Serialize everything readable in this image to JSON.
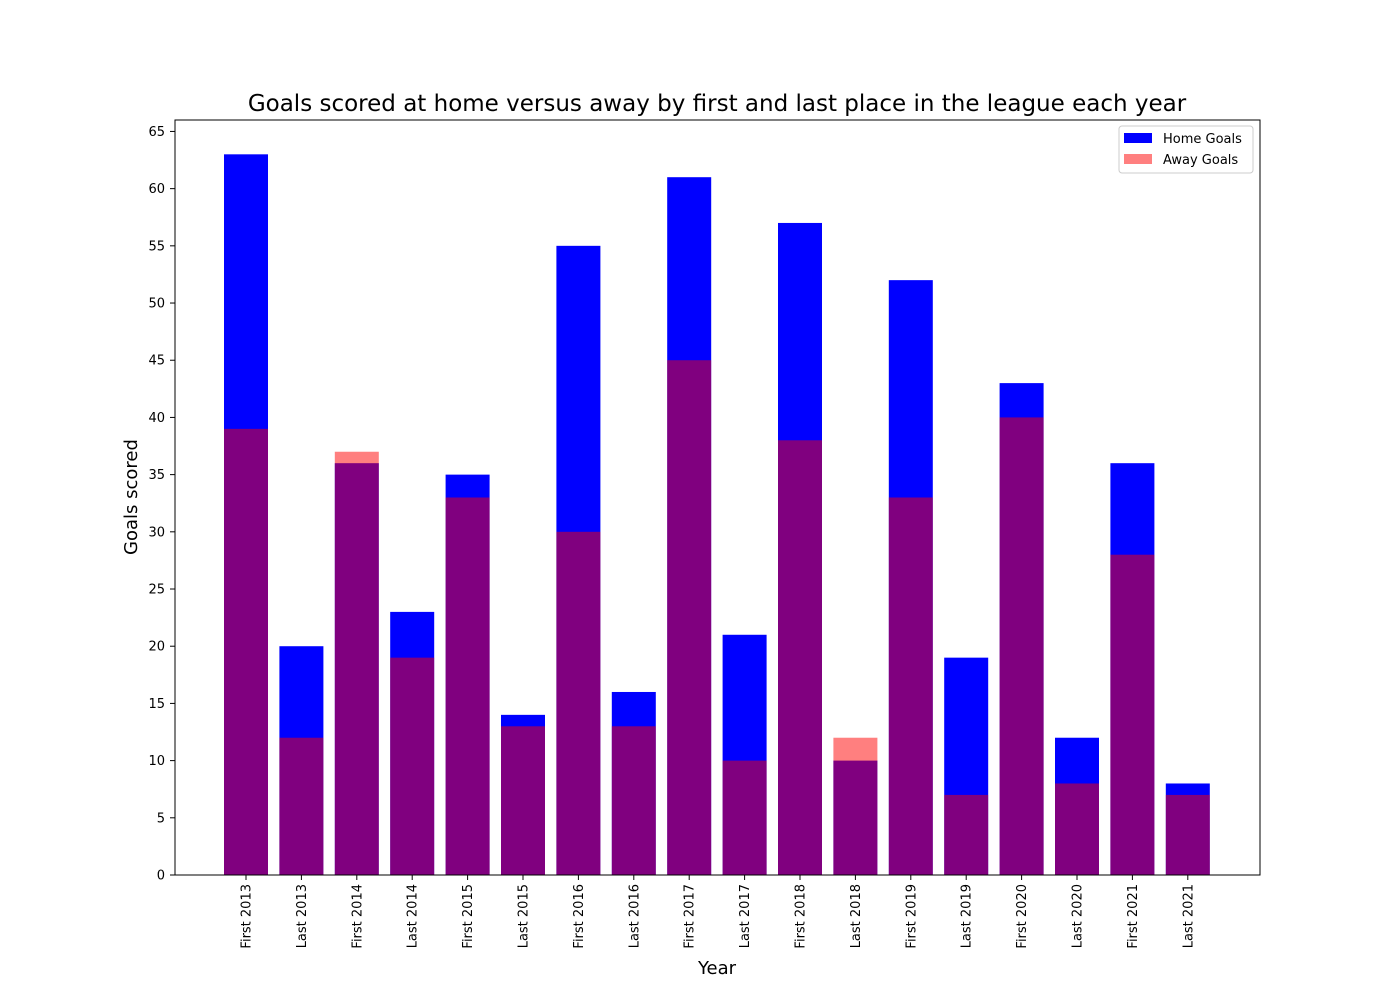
{
  "chart_data": {
    "type": "bar",
    "title": "Goals scored at home versus away by first and last place in the league each year",
    "xlabel": "Year",
    "ylabel": "Goals scored",
    "ylim": [
      0,
      66
    ],
    "yticks": [
      0,
      5,
      10,
      15,
      20,
      25,
      30,
      35,
      40,
      45,
      50,
      55,
      60,
      65
    ],
    "grid": false,
    "legend_position": "top-right",
    "overlay": true,
    "categories": [
      "First 2013",
      "Last 2013",
      "First 2014",
      "Last 2014",
      "First 2015",
      "Last 2015",
      "First 2016",
      "Last 2016",
      "First 2017",
      "Last 2017",
      "First 2018",
      "Last 2018",
      "First 2019",
      "Last 2019",
      "First 2020",
      "Last 2020",
      "First 2021",
      "Last 2021"
    ],
    "series": [
      {
        "name": "Home Goals",
        "color": "#0000ff",
        "alpha": 1,
        "values": [
          63,
          20,
          36,
          23,
          35,
          14,
          55,
          16,
          61,
          21,
          57,
          10,
          52,
          19,
          43,
          12,
          36,
          8
        ]
      },
      {
        "name": "Away Goals",
        "color": "#ff0000",
        "alpha": 0.5,
        "values": [
          39,
          12,
          37,
          19,
          33,
          13,
          30,
          13,
          45,
          10,
          38,
          12,
          33,
          7,
          40,
          8,
          28,
          7
        ]
      }
    ]
  }
}
